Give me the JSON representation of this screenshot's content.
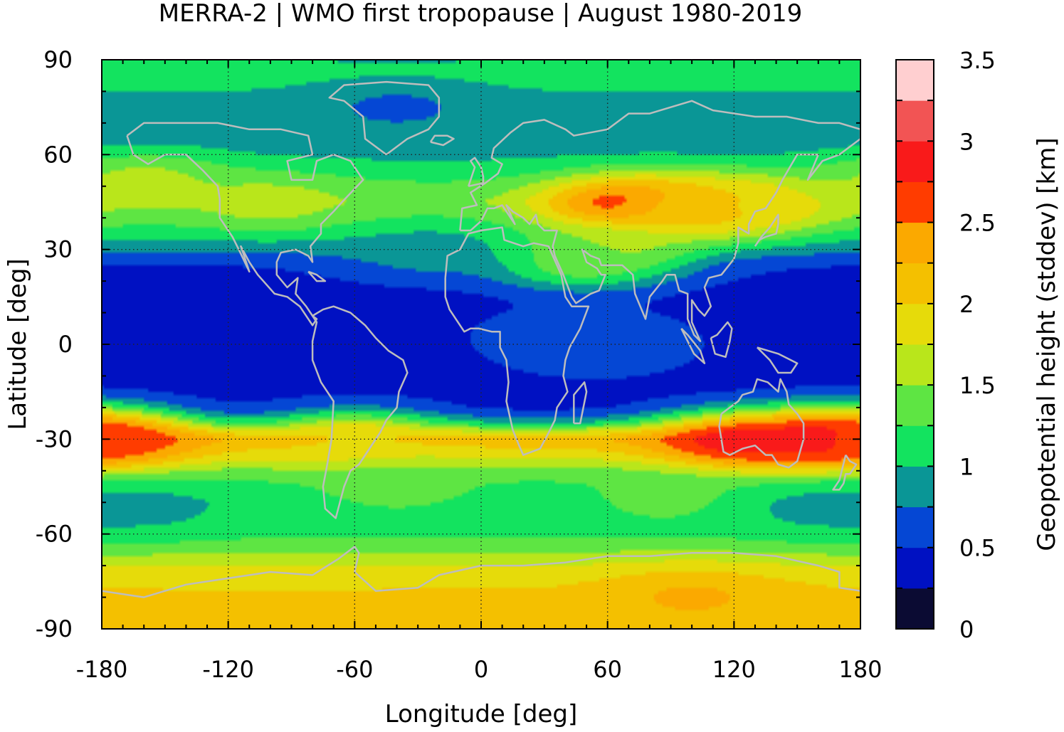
{
  "chart_data": {
    "type": "heatmap",
    "title": "MERRA-2 | WMO first tropopause | August 1980-2019",
    "xlabel": "Longitude [deg]",
    "ylabel": "Latitude [deg]",
    "colorbar_label": "Geopotential height (stddev) [km]",
    "xlim": [
      -180,
      180
    ],
    "ylim": [
      -90,
      90
    ],
    "xticks": [
      "-180",
      "-120",
      "-60",
      "0",
      "60",
      "120",
      "180"
    ],
    "yticks": [
      "90",
      "60",
      "30",
      "0",
      "-30",
      "-60",
      "-90"
    ],
    "colorbar_ticks": [
      "3.5",
      "3",
      "2.5",
      "2",
      "1.5",
      "1",
      "0.5",
      "0"
    ],
    "grid": true,
    "levels": [
      0,
      0.25,
      0.5,
      0.75,
      1.0,
      1.25,
      1.5,
      1.75,
      2.0,
      2.25,
      2.5,
      2.75,
      3.0,
      3.25,
      3.5
    ],
    "colors": [
      "#0b0b33",
      "#0011c2",
      "#0547d4",
      "#0a9696",
      "#13e35f",
      "#5ee543",
      "#b9e61b",
      "#e6db0a",
      "#f4c000",
      "#fba900",
      "#ff3c00",
      "#f91a1a",
      "#f25454",
      "#ffcfd0"
    ],
    "zonal_profile": {
      "latitude": [
        -90,
        -80,
        -75,
        -70,
        -65,
        -60,
        -55,
        -50,
        -45,
        -40,
        -35,
        -30,
        -27,
        -25,
        -22,
        -20,
        -15,
        -10,
        -5,
        0,
        5,
        10,
        15,
        20,
        25,
        30,
        35,
        40,
        45,
        50,
        55,
        60,
        65,
        70,
        75,
        80,
        85,
        90
      ],
      "stddev_km": [
        2.0,
        2.05,
        1.95,
        1.75,
        1.45,
        1.2,
        1.1,
        1.05,
        1.15,
        1.4,
        1.85,
        2.2,
        1.6,
        1.0,
        0.6,
        0.45,
        0.4,
        0.4,
        0.4,
        0.4,
        0.4,
        0.4,
        0.4,
        0.45,
        0.5,
        0.8,
        1.05,
        1.3,
        1.45,
        1.3,
        1.1,
        0.95,
        0.85,
        0.9,
        0.9,
        1.0,
        1.1,
        1.0
      ]
    },
    "features": [
      {
        "lon": 160,
        "lat": -30,
        "value": 3.1
      },
      {
        "lon": 120,
        "lat": -31,
        "value": 2.9
      },
      {
        "lon": -175,
        "lat": -30,
        "value": 2.7
      },
      {
        "lon": 70,
        "lat": 44,
        "value": 2.9
      },
      {
        "lon": 100,
        "lat": 43,
        "value": 2.3
      },
      {
        "lon": 130,
        "lat": 44,
        "value": 2.0
      },
      {
        "lon": 60,
        "lat": 30,
        "value": 1.7
      },
      {
        "lon": 45,
        "lat": 26,
        "value": 1.4
      },
      {
        "lon": 55,
        "lat": 0,
        "value": 0.9
      },
      {
        "lon": 35,
        "lat": 3,
        "value": 0.6
      },
      {
        "lon": -100,
        "lat": 45,
        "value": 1.6
      },
      {
        "lon": -160,
        "lat": 52,
        "value": 1.6
      },
      {
        "lon": -60,
        "lat": -30,
        "value": 2.0
      },
      {
        "lon": -40,
        "lat": -45,
        "value": 1.4
      },
      {
        "lon": 90,
        "lat": -48,
        "value": 1.4
      },
      {
        "lon": -160,
        "lat": -52,
        "value": 0.95
      },
      {
        "lon": 160,
        "lat": -52,
        "value": 0.95
      },
      {
        "lon": 100,
        "lat": -80,
        "value": 2.3
      },
      {
        "lon": -40,
        "lat": 75,
        "value": 0.7
      },
      {
        "lon": -25,
        "lat": 30,
        "value": 0.95
      }
    ]
  }
}
